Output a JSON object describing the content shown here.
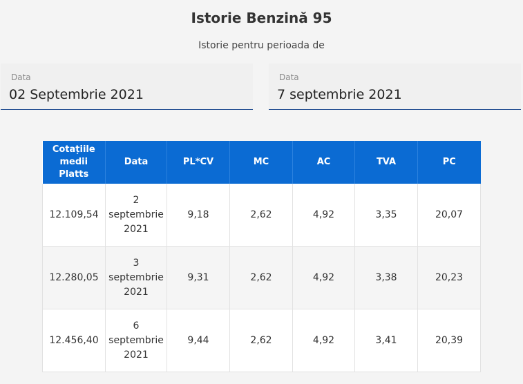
{
  "header": {
    "title": "Istorie Benzină 95",
    "subtitle": "Istorie pentru perioada de"
  },
  "filters": {
    "start": {
      "label": "Data",
      "value": "02 Septembrie 2021"
    },
    "end": {
      "label": "Data",
      "value": "7 septembrie 2021"
    }
  },
  "table": {
    "headers": [
      "Cotațiile medii Platts",
      "Data",
      "PL*CV",
      "MC",
      "AC",
      "TVA",
      "PC"
    ],
    "rows": [
      [
        "12.109,54",
        "2 septembrie 2021",
        "9,18",
        "2,62",
        "4,92",
        "3,35",
        "20,07"
      ],
      [
        "12.280,05",
        "3 septembrie 2021",
        "9,31",
        "2,62",
        "4,92",
        "3,38",
        "20,23"
      ],
      [
        "12.456,40",
        "6 septembrie 2021",
        "9,44",
        "2,62",
        "4,92",
        "3,41",
        "20,39"
      ]
    ]
  },
  "colors": {
    "header_bg": "#0b6bd3",
    "accent_underline": "#1f4b8f"
  }
}
